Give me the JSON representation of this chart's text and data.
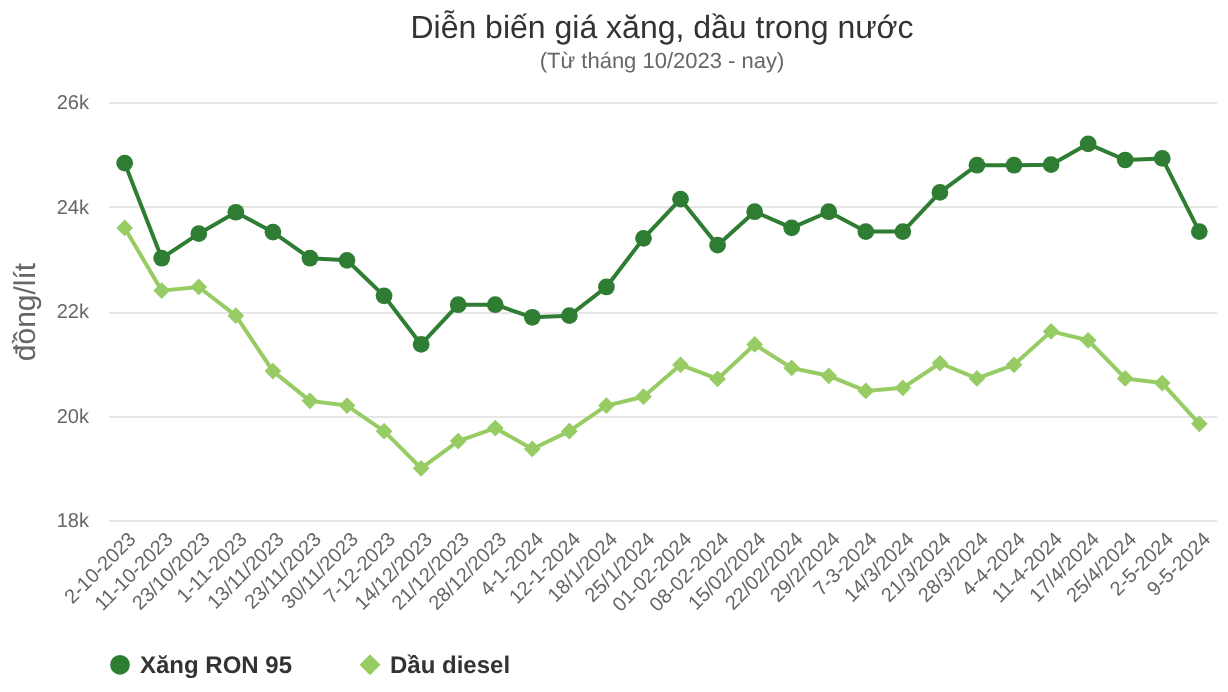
{
  "chart_data": {
    "type": "line",
    "title": "Diễn biến giá xăng, dầu trong nước",
    "subtitle": "(Từ tháng 10/2023 - nay)",
    "ylabel": "đồng/lít",
    "categories": [
      "2-10-2023",
      "11-10-2023",
      "23/10/2023",
      "1-11-2023",
      "13/11/2023",
      "23/11/2023",
      "30/11/2023",
      "7-12-2023",
      "14/12/2023",
      "21/12/2023",
      "28/12/2023",
      "4-1-2024",
      "12-1-2024",
      "18/1/2024",
      "25/1/2024",
      "01-02-2024",
      "08-02-2024",
      "15/02/2024",
      "22/02/2024",
      "29/2/2024",
      "7-3-2024",
      "14/3/2024",
      "21/3/2024",
      "28/3/2024",
      "4-4-2024",
      "11-4-2024",
      "17/4/2024",
      "25/4/2024",
      "2-5-2024",
      "9-5-2024"
    ],
    "series": [
      {
        "name": "Xăng RON 95",
        "color": "#2e7d32",
        "marker": "circle",
        "values": [
          24830,
          23010,
          23480,
          23890,
          23510,
          23010,
          22970,
          22290,
          21360,
          22120,
          22120,
          21880,
          21910,
          22460,
          23390,
          24140,
          23260,
          23900,
          23590,
          23900,
          23520,
          23520,
          24270,
          24790,
          24790,
          24800,
          25200,
          24890,
          24920,
          23520
        ]
      },
      {
        "name": "Dầu diesel",
        "color": "#97cc64",
        "marker": "diamond",
        "values": [
          23590,
          22390,
          22460,
          21910,
          20850,
          20280,
          20190,
          19700,
          18990,
          19510,
          19760,
          19360,
          19700,
          20190,
          20360,
          20970,
          20700,
          21360,
          20910,
          20760,
          20470,
          20530,
          21000,
          20710,
          20970,
          21610,
          21440,
          20710,
          20620,
          19840
        ]
      }
    ],
    "ylim": [
      18000,
      26000
    ],
    "yticks": [
      {
        "value": 18000,
        "label": "18k"
      },
      {
        "value": 20000,
        "label": "20k"
      },
      {
        "value": 22000,
        "label": "22k"
      },
      {
        "value": 24000,
        "label": "24k"
      },
      {
        "value": 26000,
        "label": "26k"
      }
    ],
    "grid": "y",
    "legend": "bottom",
    "line_style": "solid"
  }
}
